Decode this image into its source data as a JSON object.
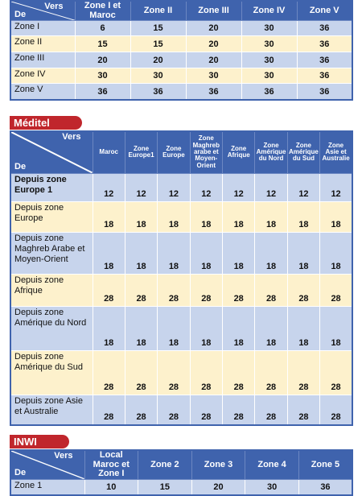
{
  "zone_table": {
    "header": {
      "to": "Vers",
      "from": "De",
      "columns": [
        "Zone I et Maroc",
        "Zone II",
        "Zone III",
        "Zone IV",
        "Zone V"
      ]
    },
    "rows": [
      {
        "label": "Zone I",
        "values": [
          6,
          15,
          20,
          30,
          36
        ]
      },
      {
        "label": "Zone II",
        "values": [
          15,
          15,
          20,
          30,
          36
        ]
      },
      {
        "label": "Zone III",
        "values": [
          20,
          20,
          20,
          30,
          36
        ]
      },
      {
        "label": "Zone IV",
        "values": [
          30,
          30,
          30,
          30,
          36
        ]
      },
      {
        "label": "Zone V",
        "values": [
          36,
          36,
          36,
          36,
          36
        ]
      }
    ]
  },
  "meditel": {
    "title": "Méditel",
    "table": {
      "header": {
        "to": "Vers",
        "from": "De",
        "columns": [
          "Maroc",
          "Zone Europe1",
          "Zone Europe",
          "Zone Maghreb arabe et Moyen-Orient",
          "Zone Afrique",
          "Zone Amérique du Nord",
          "Zone Amérique du Sud",
          "Zone Asie et Australie"
        ]
      },
      "rows": [
        {
          "label": "Depuis zone Europe 1",
          "values": [
            12,
            12,
            12,
            12,
            12,
            12,
            12,
            12
          ]
        },
        {
          "label": "Depuis zone Europe",
          "values": [
            18,
            18,
            18,
            18,
            18,
            18,
            18,
            18
          ]
        },
        {
          "label": "Depuis zone Maghreb Arabe et Moyen-Orient",
          "values": [
            18,
            18,
            18,
            18,
            18,
            18,
            18,
            18
          ]
        },
        {
          "label": "Depuis zone Afrique",
          "values": [
            28,
            28,
            28,
            28,
            28,
            28,
            28,
            28
          ]
        },
        {
          "label": "Depuis zone Amérique du Nord",
          "values": [
            18,
            18,
            18,
            18,
            18,
            18,
            18,
            18
          ]
        },
        {
          "label": "Depuis zone Amérique du Sud",
          "values": [
            28,
            28,
            28,
            28,
            28,
            28,
            28,
            28
          ]
        },
        {
          "label": "Depuis zone Asie et Australie",
          "values": [
            28,
            28,
            28,
            28,
            28,
            28,
            28,
            28
          ]
        }
      ]
    }
  },
  "inwi": {
    "title": "INWI",
    "table": {
      "header": {
        "to": "Vers",
        "from": "De",
        "columns": [
          "Local Maroc et Zone I",
          "Zone 2",
          "Zone 3",
          "Zone 4",
          "Zone 5"
        ]
      },
      "rows": [
        {
          "label": "Zone 1",
          "values": [
            10,
            15,
            20,
            30,
            36
          ]
        }
      ]
    }
  }
}
